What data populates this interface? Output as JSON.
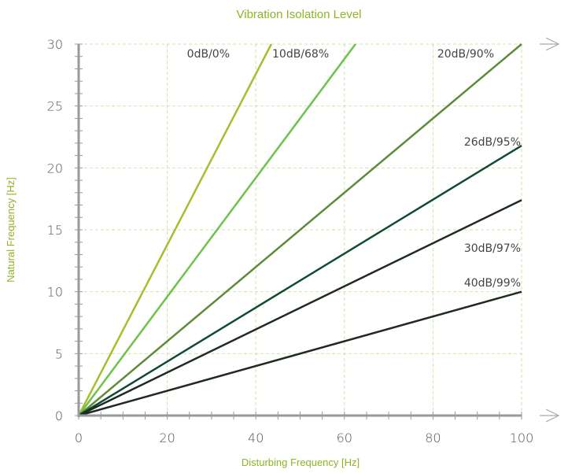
{
  "colors": {
    "accent": "#8fb325",
    "grid": "#cfe3a8",
    "axis": "#999999"
  },
  "chart_data": {
    "type": "line",
    "title": "Vibration Isolation Level",
    "xlabel": "Disturbing Frequency [Hz]",
    "ylabel": "Natural Frequency [Hz]",
    "xlim": [
      0,
      100
    ],
    "ylim": [
      0,
      30
    ],
    "x_ticks": [
      0,
      20,
      40,
      60,
      80,
      100
    ],
    "y_ticks": [
      0,
      5,
      10,
      15,
      20,
      25,
      30
    ],
    "grid": true,
    "series": [
      {
        "name": "0dB/0%",
        "color": "#a4bf2e",
        "points": [
          [
            0,
            0
          ],
          [
            43.5,
            30
          ]
        ]
      },
      {
        "name": "10dB/68%",
        "color": "#6cc24a",
        "points": [
          [
            0,
            0
          ],
          [
            62.5,
            30
          ]
        ]
      },
      {
        "name": "20dB/90%",
        "color": "#5e8a3a",
        "points": [
          [
            0,
            0
          ],
          [
            100,
            30
          ]
        ]
      },
      {
        "name": "26dB/95%",
        "color": "#0f4a32",
        "points": [
          [
            0,
            0
          ],
          [
            100,
            21.8
          ]
        ]
      },
      {
        "name": "30dB/97%",
        "color": "#1e2a22",
        "points": [
          [
            0,
            0
          ],
          [
            100,
            17.4
          ]
        ]
      },
      {
        "name": "40dB/99%",
        "color": "#1e2a22",
        "points": [
          [
            0,
            0
          ],
          [
            100,
            10
          ]
        ]
      }
    ]
  }
}
